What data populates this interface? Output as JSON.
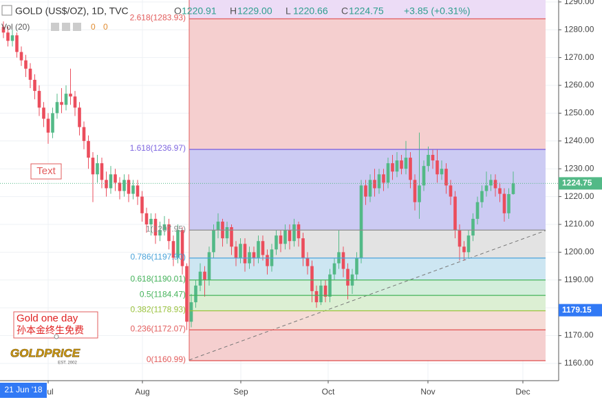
{
  "header": {
    "symbol": "GOLD (US$/OZ), 1D, TVC",
    "ohlc": [
      {
        "label": "O",
        "value": "1220.91"
      },
      {
        "label": "H",
        "value": "1229.00"
      },
      {
        "label": "L",
        "value": "1220.66"
      },
      {
        "label": "C",
        "value": "1224.75"
      }
    ],
    "change": "+3.85 (+0.31%)",
    "volume": "Vol (20)",
    "volume_values": [
      "0",
      "0"
    ]
  },
  "chart_data": {
    "type": "candlestick",
    "open": [
      1281,
      1279,
      1276,
      1278,
      1272,
      1269,
      1266,
      1262,
      1258,
      1252,
      1248,
      1243,
      1250,
      1254,
      1253,
      1257,
      1256,
      1252,
      1245,
      1240,
      1234,
      1228,
      1232,
      1226,
      1223,
      1228,
      1225,
      1222,
      1226,
      1221,
      1224,
      1220,
      1214,
      1210,
      1212,
      1206,
      1208,
      1210,
      1204,
      1198,
      1208,
      1195,
      1175,
      1182,
      1188,
      1193,
      1190,
      1200,
      1208,
      1211,
      1205,
      1209,
      1202,
      1198,
      1203,
      1196,
      1200,
      1198,
      1204,
      1199,
      1195,
      1201,
      1206,
      1203,
      1208,
      1204,
      1210,
      1205,
      1198,
      1195,
      1186,
      1182,
      1188,
      1184,
      1192,
      1196,
      1200,
      1194,
      1188,
      1192,
      1198,
      1224,
      1220,
      1226,
      1223,
      1228,
      1225,
      1232,
      1229,
      1233,
      1230,
      1234,
      1226,
      1218,
      1224,
      1231,
      1235,
      1233,
      1228,
      1230,
      1224,
      1220,
      1208,
      1202,
      1200,
      1206,
      1212,
      1218,
      1222,
      1224,
      1226,
      1223,
      1221,
      1214,
      1220.91
    ],
    "high": [
      1283,
      1281,
      1280,
      1279,
      1274,
      1271,
      1268,
      1264,
      1260,
      1254,
      1250,
      1252,
      1257,
      1259,
      1260,
      1266,
      1258,
      1254,
      1247,
      1242,
      1236,
      1235,
      1234,
      1229,
      1231,
      1230,
      1227,
      1228,
      1228,
      1226,
      1226,
      1222,
      1216,
      1214,
      1214,
      1211,
      1213,
      1212,
      1206,
      1210,
      1209,
      1196,
      1185,
      1190,
      1196,
      1195,
      1202,
      1210,
      1214,
      1212,
      1211,
      1210,
      1204,
      1205,
      1205,
      1202,
      1202,
      1206,
      1206,
      1201,
      1203,
      1208,
      1208,
      1210,
      1210,
      1212,
      1211,
      1207,
      1200,
      1197,
      1188,
      1190,
      1190,
      1194,
      1198,
      1208,
      1202,
      1196,
      1194,
      1200,
      1226,
      1226,
      1228,
      1230,
      1230,
      1230,
      1234,
      1235,
      1236,
      1235,
      1240,
      1236,
      1228,
      1243,
      1233,
      1238,
      1237,
      1237,
      1233,
      1232,
      1226,
      1222,
      1210,
      1204,
      1208,
      1214,
      1220,
      1224,
      1229,
      1228,
      1228,
      1225,
      1223,
      1223,
      1229
    ],
    "low": [
      1277,
      1274,
      1274,
      1270,
      1267,
      1263,
      1259,
      1255,
      1249,
      1245,
      1239,
      1241,
      1248,
      1250,
      1251,
      1253,
      1249,
      1242,
      1237,
      1230,
      1218,
      1225,
      1223,
      1220,
      1221,
      1222,
      1219,
      1220,
      1218,
      1219,
      1217,
      1211,
      1207,
      1206,
      1203,
      1204,
      1206,
      1201,
      1195,
      1196,
      1192,
      1172,
      1173,
      1180,
      1186,
      1184,
      1188,
      1198,
      1205,
      1202,
      1203,
      1199,
      1195,
      1196,
      1193,
      1194,
      1195,
      1196,
      1197,
      1192,
      1193,
      1199,
      1200,
      1201,
      1201,
      1202,
      1202,
      1195,
      1192,
      1182,
      1180,
      1181,
      1182,
      1182,
      1190,
      1194,
      1191,
      1183,
      1185,
      1190,
      1196,
      1217,
      1218,
      1220,
      1221,
      1222,
      1223,
      1226,
      1227,
      1228,
      1228,
      1223,
      1215,
      1212,
      1222,
      1229,
      1230,
      1225,
      1226,
      1221,
      1217,
      1205,
      1197,
      1197,
      1198,
      1204,
      1210,
      1216,
      1220,
      1222,
      1220,
      1218,
      1211,
      1212,
      1220.66
    ],
    "close": [
      1279,
      1276,
      1278,
      1272,
      1269,
      1266,
      1262,
      1258,
      1252,
      1248,
      1243,
      1250,
      1254,
      1253,
      1257,
      1256,
      1252,
      1245,
      1240,
      1234,
      1228,
      1232,
      1226,
      1223,
      1228,
      1225,
      1222,
      1226,
      1221,
      1224,
      1220,
      1214,
      1210,
      1212,
      1206,
      1208,
      1210,
      1204,
      1198,
      1208,
      1195,
      1175,
      1182,
      1188,
      1193,
      1190,
      1200,
      1208,
      1211,
      1205,
      1209,
      1202,
      1198,
      1203,
      1196,
      1200,
      1198,
      1204,
      1199,
      1195,
      1201,
      1206,
      1203,
      1208,
      1204,
      1210,
      1205,
      1198,
      1195,
      1186,
      1182,
      1188,
      1184,
      1192,
      1196,
      1200,
      1194,
      1188,
      1192,
      1198,
      1224,
      1220,
      1226,
      1223,
      1228,
      1225,
      1232,
      1229,
      1233,
      1230,
      1234,
      1226,
      1218,
      1224,
      1231,
      1235,
      1233,
      1228,
      1230,
      1224,
      1220,
      1208,
      1202,
      1200,
      1206,
      1212,
      1218,
      1222,
      1224,
      1226,
      1223,
      1221,
      1214,
      1220.9,
      1224.75
    ],
    "up_color": "#53b987",
    "down_color": "#eb4d5c",
    "ylim": [
      1153.8,
      1290.7
    ],
    "yticks": [
      {
        "value": 1160,
        "label": "1160.00"
      },
      {
        "value": 1170,
        "label": "1170.00"
      },
      {
        "value": 1180,
        "label": "1180.00"
      },
      {
        "value": 1190,
        "label": "1190.00"
      },
      {
        "value": 1200,
        "label": "1200.00"
      },
      {
        "value": 1210,
        "label": "1210.00"
      },
      {
        "value": 1220,
        "label": "1220.00"
      },
      {
        "value": 1230,
        "label": "1230.00"
      },
      {
        "value": 1240,
        "label": "1240.00"
      },
      {
        "value": 1250,
        "label": "1250.00"
      },
      {
        "value": 1260,
        "label": "1260.00"
      },
      {
        "value": 1270,
        "label": "1270.00"
      },
      {
        "value": 1280,
        "label": "1280.00"
      },
      {
        "value": 1290,
        "label": "1290.00"
      }
    ],
    "grid": true,
    "last_price": 1224.75,
    "last_price_color": "#53b987",
    "crosshair_price": 1179.15,
    "crosshair_color": "#3179f5",
    "crosshair_date": "21 Jun '18",
    "month_labels": [
      "Jul",
      "Aug",
      "Sep",
      "Oct",
      "Nov",
      "Dec"
    ],
    "fib_top_fill": "#ecdcf6",
    "fib_levels": [
      {
        "label": "2.618(1283.93)",
        "price": 1283.93,
        "color": "#e25b5b",
        "fill": "#f5cfcf"
      },
      {
        "label": "1.618(1236.97)",
        "price": 1236.97,
        "color": "#7e66e0",
        "fill": "#cccbf3"
      },
      {
        "label": "1(1207.95)",
        "price": 1207.95,
        "color": "#8c8c8c",
        "fill": "#e3e3e3"
      },
      {
        "label": "0.786(1197.90)",
        "price": 1197.9,
        "color": "#4aa3d9",
        "fill": "#cde6f2"
      },
      {
        "label": "0.618(1190.01)",
        "price": 1190.01,
        "color": "#45b35a",
        "fill": "#d3eedb"
      },
      {
        "label": "0.5(1184.47)",
        "price": 1184.47,
        "color": "#45b35a",
        "fill": "#dcefd3"
      },
      {
        "label": "0.382(1178.93)",
        "price": 1178.93,
        "color": "#9ac23c",
        "fill": "#f5dcd6"
      },
      {
        "label": "0.236(1172.07)",
        "price": 1172.07,
        "color": "#e25b5b",
        "fill": "#f5cfcf"
      },
      {
        "label": "0(1160.99)",
        "price": 1160.99,
        "color": "#e25b5b"
      }
    ],
    "annotations": {
      "text_box": "Text",
      "gold_box": [
        "Gold one day",
        "孙本金终生免费"
      ],
      "logo": "GOLDPRICE",
      "logo_sub": "EST. 2002"
    }
  }
}
